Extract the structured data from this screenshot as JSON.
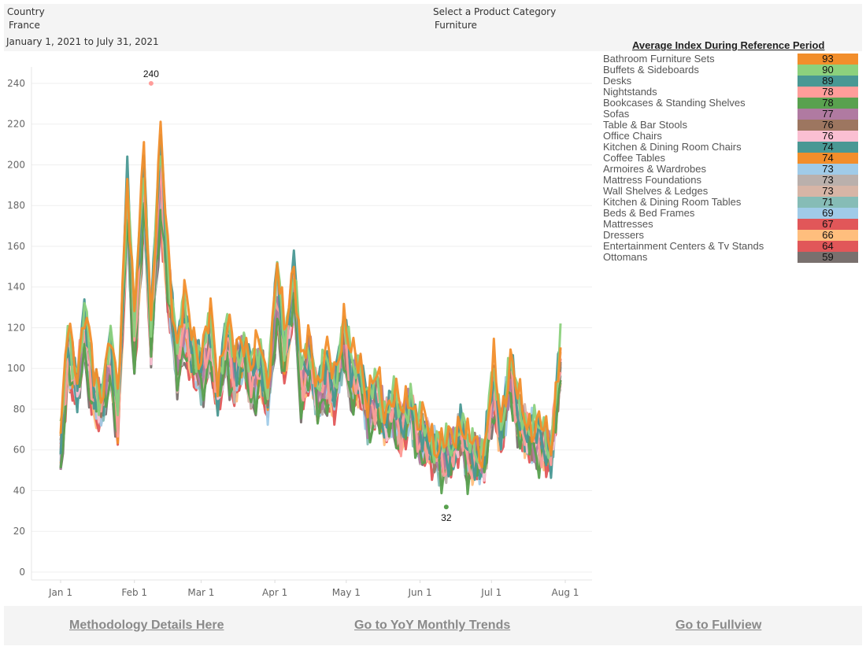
{
  "filters": {
    "country": {
      "label": "Country",
      "value": "France"
    },
    "category": {
      "label": "Select a Product Category",
      "value": "Furniture"
    },
    "date_range": "January 1, 2021 to July 31, 2021"
  },
  "legend": {
    "title": "Average Index During Reference Period"
  },
  "footer": {
    "links": [
      "Methodology Details Here",
      "Go to YoY Monthly Trends",
      "Go to Fullview"
    ]
  },
  "chart_data": {
    "type": "line",
    "title": "",
    "xlabel": "",
    "ylabel": "",
    "ylim": [
      0,
      245
    ],
    "yticks": [
      0,
      20,
      40,
      60,
      80,
      100,
      120,
      140,
      160,
      180,
      200,
      220,
      240
    ],
    "x_range": [
      "2021-01-01",
      "2021-07-31"
    ],
    "xtick_labels": [
      "Jan 1",
      "Feb 1",
      "Mar 1",
      "Apr 1",
      "May 1",
      "Jun 1",
      "Jul 1",
      "Aug 1"
    ],
    "xtick_days": [
      0,
      31,
      59,
      90,
      120,
      151,
      181,
      212
    ],
    "grid": true,
    "legend_position": "right",
    "annotations": [
      {
        "text": "240",
        "series": "Nightstands",
        "day": 38,
        "value": 240,
        "position": "above"
      },
      {
        "text": "32",
        "series": "Bookcases & Standing Shelves",
        "day": 162,
        "value": 32,
        "position": "below"
      }
    ],
    "trend_days": [
      0,
      3,
      7,
      10,
      14,
      17,
      21,
      24,
      28,
      31,
      35,
      38,
      42,
      45,
      49,
      52,
      56,
      59,
      63,
      66,
      70,
      73,
      77,
      80,
      84,
      87,
      91,
      94,
      98,
      101,
      105,
      108,
      112,
      115,
      119,
      122,
      126,
      129,
      133,
      136,
      140,
      143,
      147,
      150,
      154,
      157,
      161,
      164,
      168,
      171,
      175,
      178,
      182,
      185,
      189,
      192,
      196,
      199,
      203,
      206,
      210,
      212
    ],
    "trend_values": [
      62,
      112,
      95,
      120,
      92,
      85,
      108,
      80,
      185,
      115,
      195,
      118,
      200,
      150,
      105,
      125,
      110,
      100,
      118,
      92,
      115,
      100,
      112,
      95,
      106,
      90,
      140,
      110,
      145,
      96,
      108,
      88,
      100,
      92,
      118,
      98,
      100,
      80,
      90,
      78,
      82,
      74,
      85,
      68,
      70,
      62,
      58,
      62,
      72,
      60,
      60,
      58,
      95,
      72,
      100,
      80,
      72,
      68,
      66,
      62,
      105,
      62
    ],
    "series": [
      {
        "name": "Bathroom Furniture Sets",
        "avg": 93,
        "color": "#f28e2b",
        "scale": 1.08,
        "offset": 6,
        "phase": 0
      },
      {
        "name": "Buffets & Sideboards",
        "avg": 90,
        "color": "#8cd17d",
        "scale": 1.05,
        "offset": 4,
        "phase": 1
      },
      {
        "name": "Desks",
        "avg": 89,
        "color": "#499894",
        "scale": 1.1,
        "offset": 2,
        "phase": 2
      },
      {
        "name": "Nightstands",
        "avg": 78,
        "color": "#ff9d9a",
        "scale": 1.05,
        "offset": -2,
        "phase": 3
      },
      {
        "name": "Bookcases & Standing Shelves",
        "avg": 78,
        "color": "#59a14f",
        "scale": 0.95,
        "offset": -10,
        "phase": 4
      },
      {
        "name": "Sofas",
        "avg": 77,
        "color": "#b07aa1",
        "scale": 0.98,
        "offset": -3,
        "phase": 5
      },
      {
        "name": "Table & Bar Stools",
        "avg": 76,
        "color": "#9d7660",
        "scale": 1.0,
        "offset": -2,
        "phase": 6
      },
      {
        "name": "Office Chairs",
        "avg": 76,
        "color": "#fabfd2",
        "scale": 0.97,
        "offset": -4,
        "phase": 7
      },
      {
        "name": "Kitchen & Dining Room Chairs",
        "avg": 74,
        "color": "#499894",
        "scale": 1.0,
        "offset": -4,
        "phase": 8
      },
      {
        "name": "Coffee Tables",
        "avg": 74,
        "color": "#f28e2b",
        "scale": 1.0,
        "offset": -3,
        "phase": 9
      },
      {
        "name": "Armoires & Wardrobes",
        "avg": 73,
        "color": "#a0cbe8",
        "scale": 0.95,
        "offset": -4,
        "phase": 10
      },
      {
        "name": "Mattress Foundations",
        "avg": 73,
        "color": "#bab0ac",
        "scale": 0.96,
        "offset": -5,
        "phase": 11
      },
      {
        "name": "Wall Shelves & Ledges",
        "avg": 73,
        "color": "#d7b5a6",
        "scale": 0.96,
        "offset": -5,
        "phase": 12
      },
      {
        "name": "Kitchen & Dining Room Tables",
        "avg": 71,
        "color": "#86bcb6",
        "scale": 0.95,
        "offset": -6,
        "phase": 13
      },
      {
        "name": "Beds & Bed Frames",
        "avg": 69,
        "color": "#a0cbe8",
        "scale": 0.93,
        "offset": -6,
        "phase": 14
      },
      {
        "name": "Mattresses",
        "avg": 67,
        "color": "#e15759",
        "scale": 0.93,
        "offset": -9,
        "phase": 15
      },
      {
        "name": "Dressers",
        "avg": 66,
        "color": "#ffbe7d",
        "scale": 0.92,
        "offset": -9,
        "phase": 16
      },
      {
        "name": "Entertainment Centers & Tv Stands",
        "avg": 64,
        "color": "#e15759",
        "scale": 0.9,
        "offset": -10,
        "phase": 17
      },
      {
        "name": "Ottomans",
        "avg": 59,
        "color": "#79706e",
        "scale": 0.9,
        "offset": -12,
        "phase": 18
      }
    ]
  }
}
